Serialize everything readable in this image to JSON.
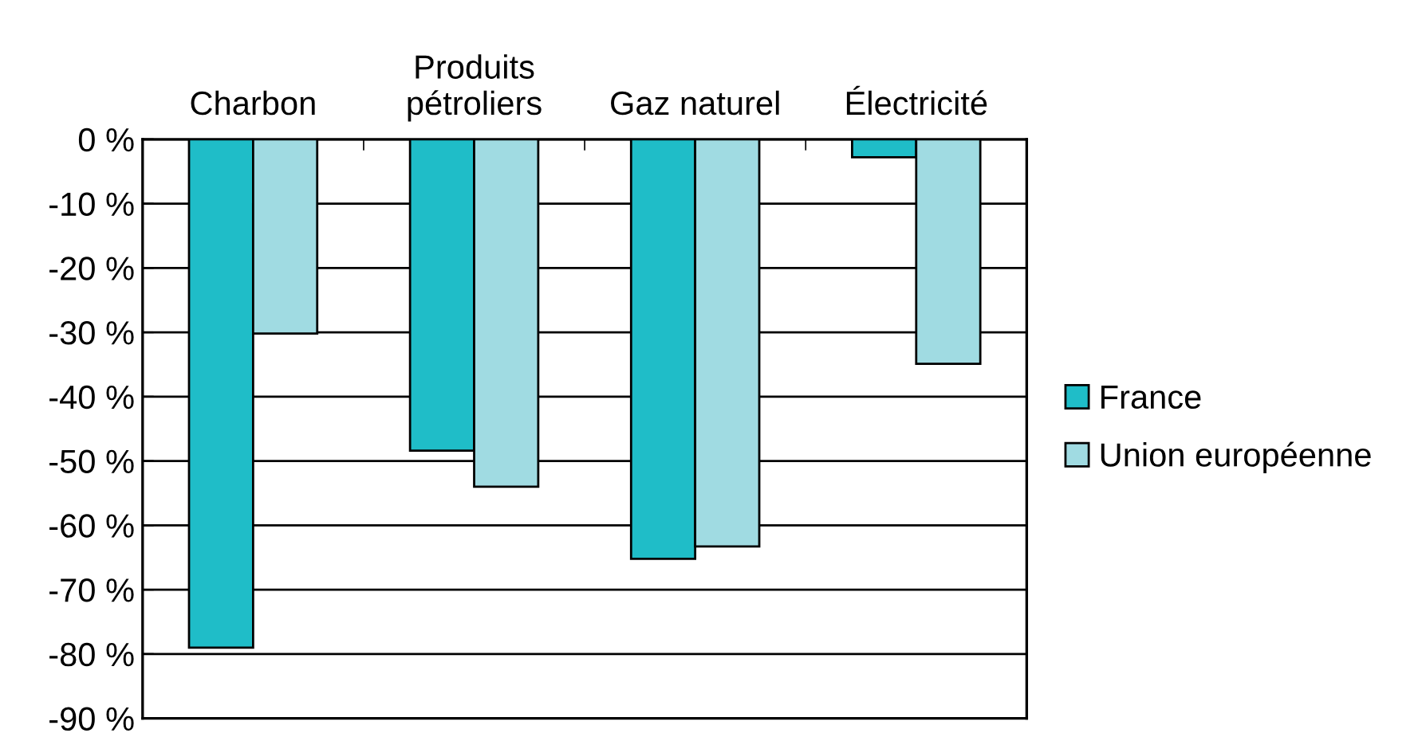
{
  "chart_data": {
    "type": "bar",
    "categories": [
      "Charbon",
      "Produits\npétroliers",
      "Gaz naturel",
      "Électricité"
    ],
    "series": [
      {
        "name": "France",
        "color": "#1fbdc8",
        "values": [
          -79,
          -48.4,
          -65.2,
          -2.8
        ]
      },
      {
        "name": "Union européenne",
        "color": "#a0dbe2",
        "values": [
          -30.2,
          -54,
          -63.3,
          -34.9
        ]
      }
    ],
    "ylim": [
      -90,
      0
    ],
    "yticks": [
      {
        "value": 0,
        "label": "0 %"
      },
      {
        "value": -10,
        "label": "-10 %"
      },
      {
        "value": -20,
        "label": "-20 %"
      },
      {
        "value": -30,
        "label": "-30 %"
      },
      {
        "value": -40,
        "label": "-40 %"
      },
      {
        "value": -50,
        "label": "-50 %"
      },
      {
        "value": -60,
        "label": "-60 %"
      },
      {
        "value": -70,
        "label": "-70 %"
      },
      {
        "value": -80,
        "label": "-80 %"
      },
      {
        "value": -90,
        "label": "-90 %"
      }
    ],
    "grid": "y",
    "legend": "right"
  }
}
